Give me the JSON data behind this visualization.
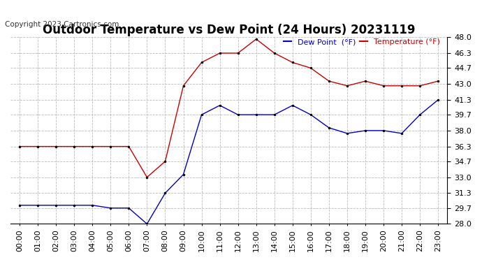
{
  "title": "Outdoor Temperature vs Dew Point (24 Hours) 20231119",
  "copyright": "Copyright 2023 Cartronics.com",
  "legend_dew": "Dew Point  (°F)",
  "legend_temp": "Temperature (°F)",
  "x_labels": [
    "00:00",
    "01:00",
    "02:00",
    "03:00",
    "04:00",
    "05:00",
    "06:00",
    "07:00",
    "08:00",
    "09:00",
    "10:00",
    "11:00",
    "12:00",
    "13:00",
    "14:00",
    "15:00",
    "16:00",
    "17:00",
    "18:00",
    "19:00",
    "20:00",
    "21:00",
    "22:00",
    "23:00"
  ],
  "temperature": [
    36.3,
    36.3,
    36.3,
    36.3,
    36.3,
    36.3,
    36.3,
    33.0,
    34.7,
    42.8,
    45.3,
    46.3,
    46.3,
    47.8,
    46.3,
    45.3,
    44.7,
    43.3,
    42.8,
    43.3,
    42.8,
    42.8,
    42.8,
    43.3
  ],
  "dew_point": [
    30.0,
    30.0,
    30.0,
    30.0,
    30.0,
    29.7,
    29.7,
    28.0,
    31.3,
    33.3,
    39.7,
    40.7,
    39.7,
    39.7,
    39.7,
    40.7,
    39.7,
    38.3,
    37.7,
    38.0,
    38.0,
    37.7,
    39.7,
    41.3
  ],
  "temp_color": "#cc0000",
  "dew_color": "#0000cc",
  "ylim_min": 28.0,
  "ylim_max": 48.0,
  "yticks": [
    28.0,
    29.7,
    31.3,
    33.0,
    34.7,
    36.3,
    38.0,
    39.7,
    41.3,
    43.0,
    44.7,
    46.3,
    48.0
  ],
  "background_color": "#ffffff",
  "grid_color": "#bbbbbb",
  "title_fontsize": 12,
  "tick_fontsize": 8,
  "copyright_fontsize": 7.5,
  "legend_fontsize": 8
}
